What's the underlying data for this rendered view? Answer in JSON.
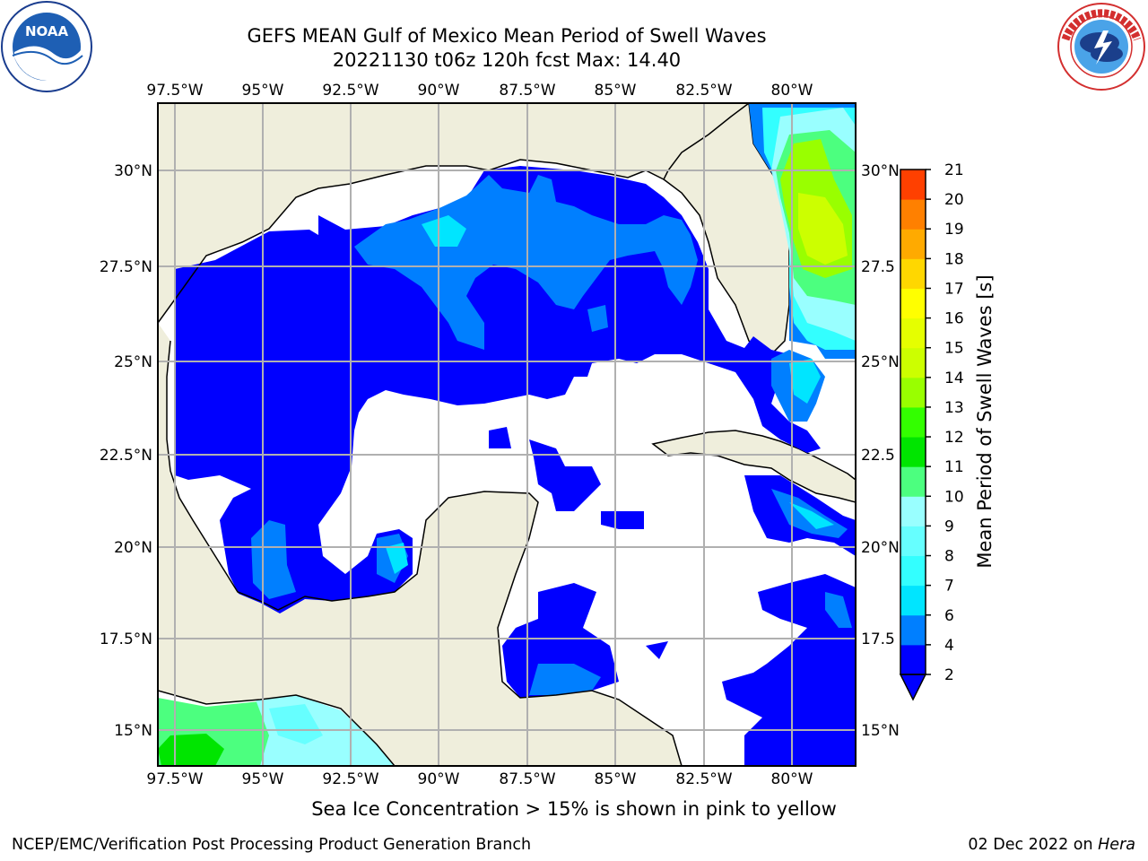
{
  "title_line1": "GEFS MEAN Gulf of Mexico Mean Period of Swell Waves",
  "title_line2": "20221130 t06z 120h fcst   Max: 14.40",
  "lon_labels": [
    "97.5°W",
    "95°W",
    "92.5°W",
    "90°W",
    "87.5°W",
    "85°W",
    "82.5°W",
    "80°W"
  ],
  "lat_labels_left": [
    "30°N",
    "27.5°N",
    "25°N",
    "22.5°N",
    "20°N",
    "17.5°N",
    "15°N"
  ],
  "lat_labels_right": [
    "30°N",
    "27.5",
    "25°N",
    "22.5",
    "20°N",
    "17.5",
    "15°N"
  ],
  "colorbar": {
    "title": "Mean Period of Swell Waves [s]",
    "ticks": [
      "2",
      "4",
      "6",
      "7",
      "8",
      "9",
      "10",
      "11",
      "12",
      "13",
      "14",
      "15",
      "16",
      "17",
      "18",
      "19",
      "20",
      "21"
    ],
    "colors": [
      "#0000ff",
      "#007fff",
      "#00e5ff",
      "#33ffff",
      "#66ffff",
      "#99ffff",
      "#4cff7f",
      "#00e500",
      "#33ff00",
      "#99ff00",
      "#ccff00",
      "#e5ff00",
      "#ffff00",
      "#ffd700",
      "#ffaa00",
      "#ff8000",
      "#ff4000",
      "#ff0000"
    ]
  },
  "colors": {
    "land": "#efeedc",
    "ocean_missing": "#ffffff",
    "grid": "#b0b0b0"
  },
  "note": "Sea Ice Concentration > 15% is shown in pink to yellow",
  "footer_left": "NCEP/EMC/Verification Post Processing Product Generation Branch",
  "footer_date": "02 Dec 2022 on",
  "footer_host": "Hera",
  "logos": {
    "left": "noaa-logo",
    "right": "nws-logo"
  }
}
